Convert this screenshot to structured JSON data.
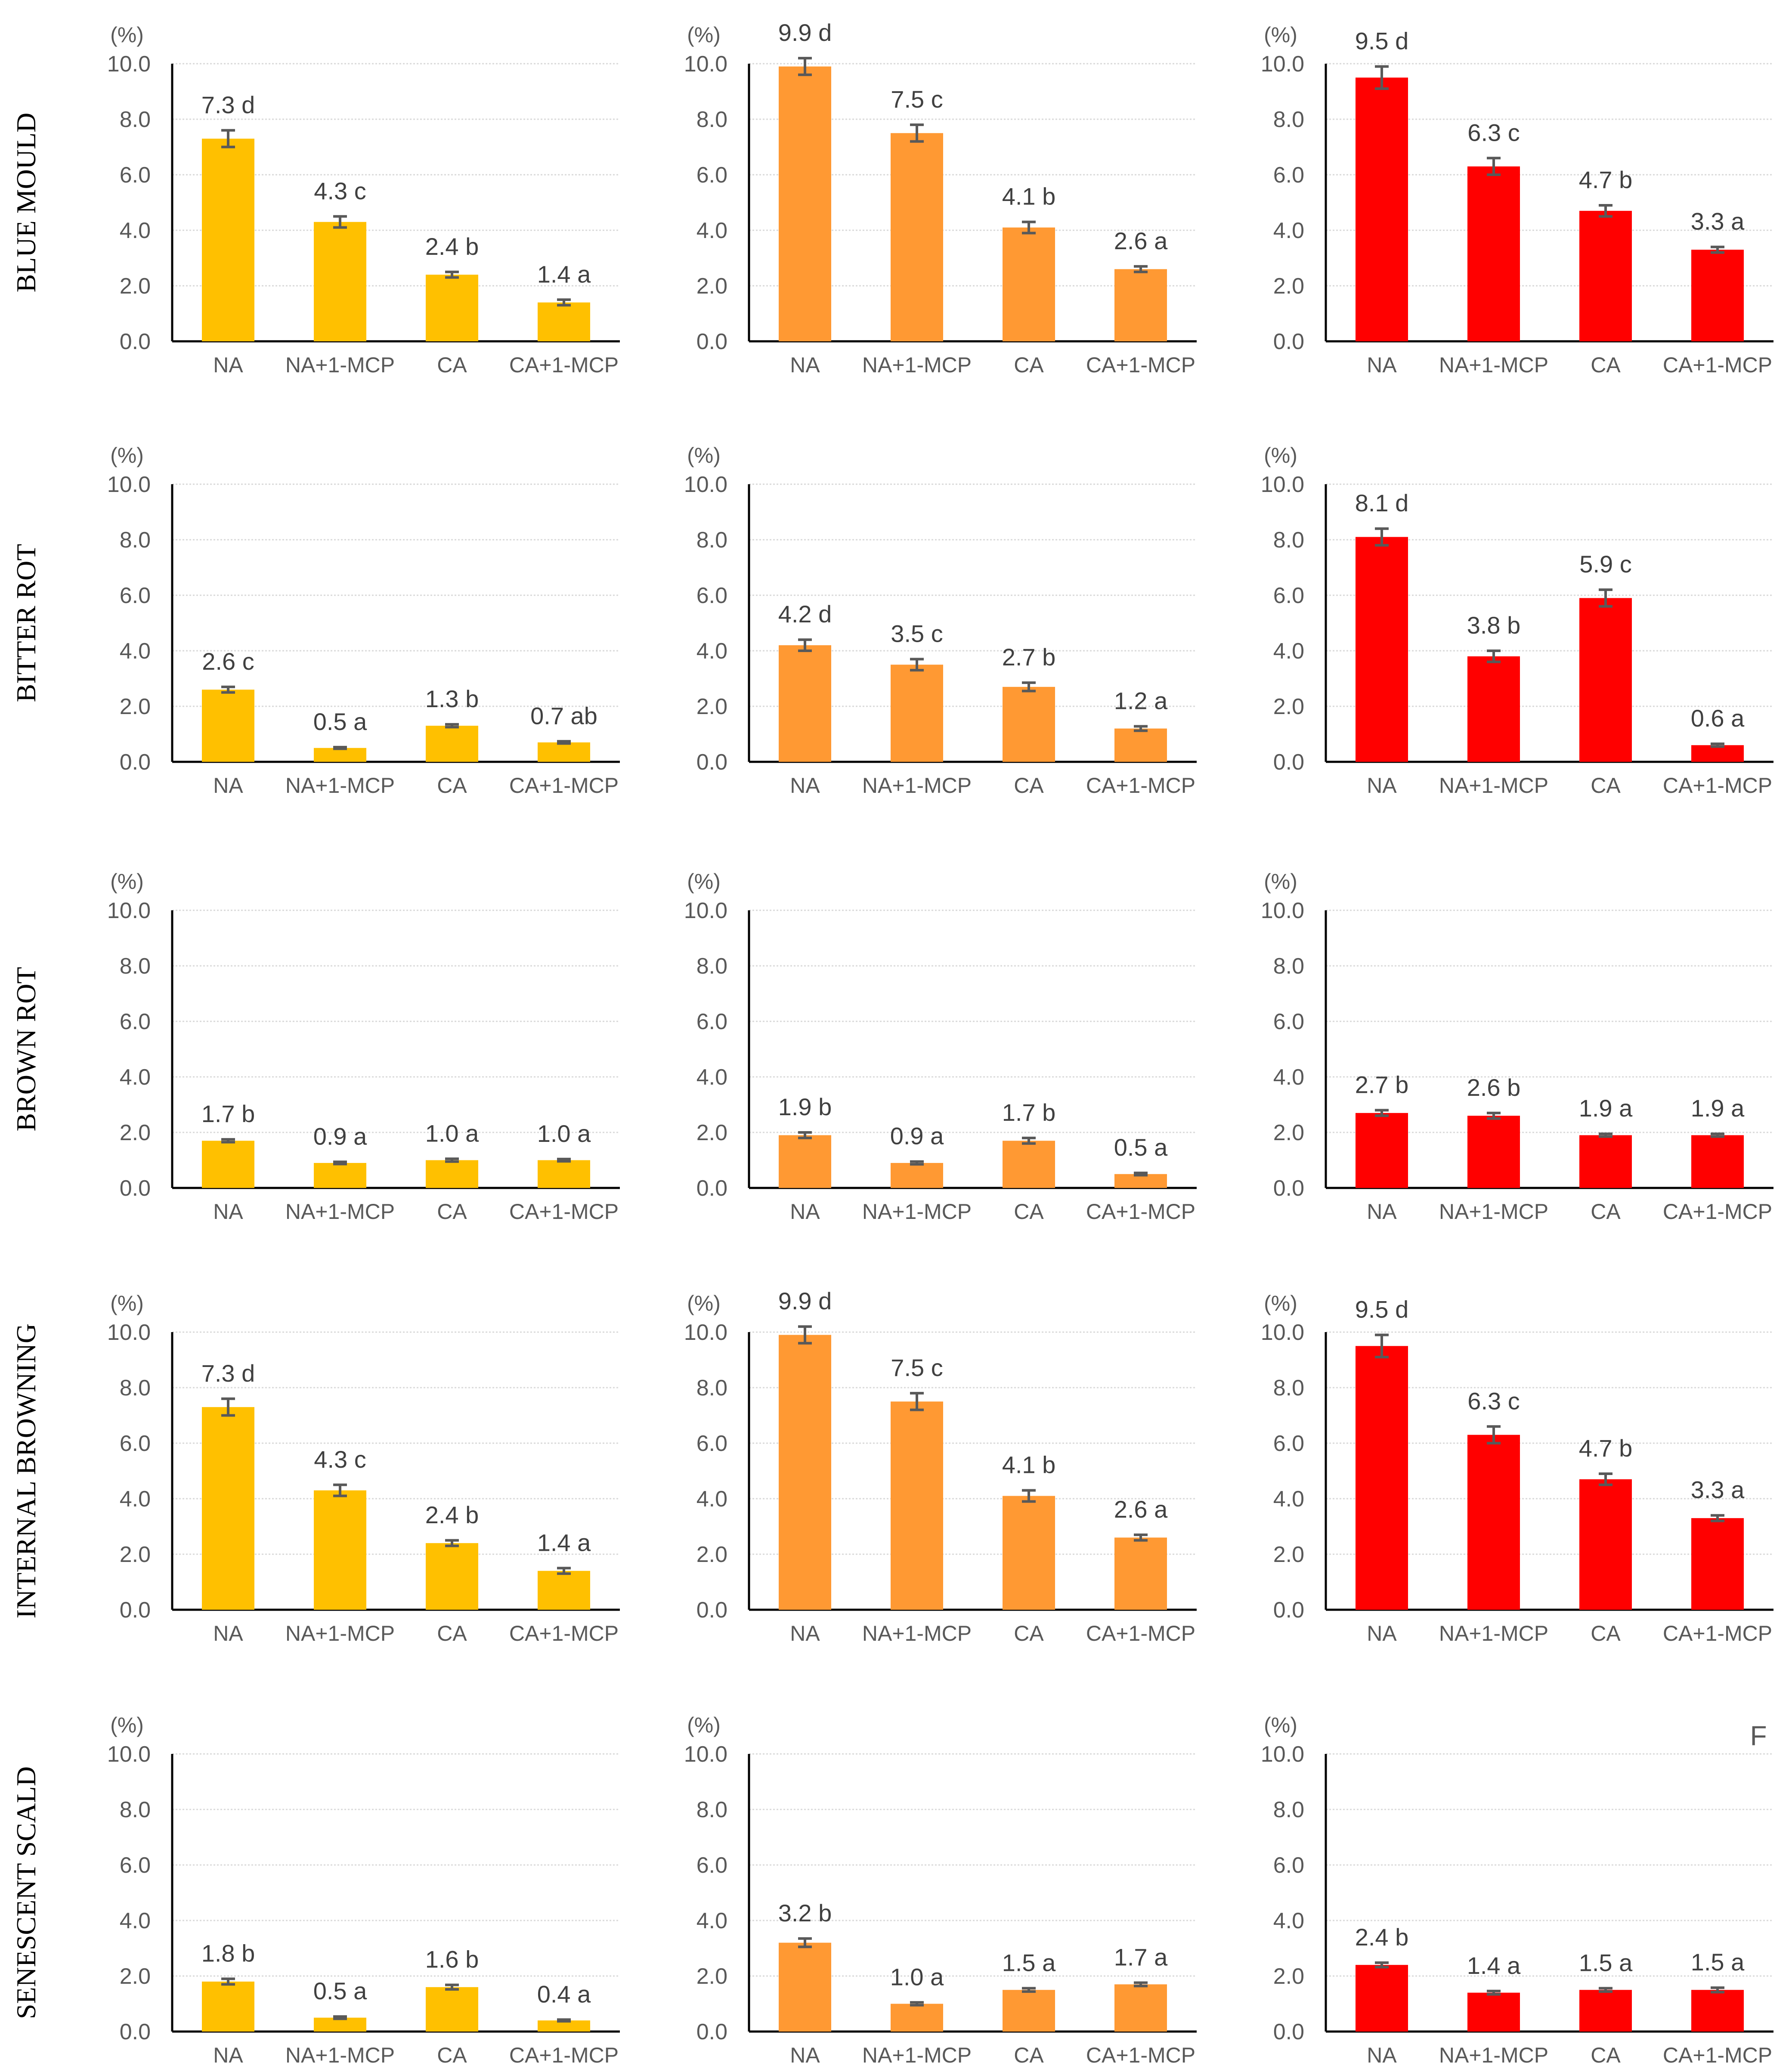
{
  "row_labels": [
    "BLUE MOULD",
    "BITTER ROT",
    "BROWN ROT",
    "INTERNAL BROWNING",
    "SENESCENT SCALD"
  ],
  "panel_letters": [
    "",
    "",
    "",
    "",
    "",
    "",
    "",
    "",
    "",
    "",
    "",
    "",
    "",
    "",
    "F"
  ],
  "colors": [
    "#FFC000",
    "#FF9933",
    "#FF0000"
  ],
  "error_bar_color": "#595959",
  "chart_data": [
    {
      "type": "bar",
      "ylabel": "(%)",
      "ylim": [
        0,
        10
      ],
      "yticks": [
        "0.0",
        "2.0",
        "4.0",
        "6.0",
        "8.0",
        "10.0"
      ],
      "categories": [
        "NA",
        "NA+1-MCP",
        "CA",
        "CA+1-MCP"
      ],
      "values": [
        7.3,
        4.3,
        2.4,
        1.4
      ],
      "errors": [
        0.3,
        0.2,
        0.1,
        0.1
      ],
      "labels": [
        "7.3  d",
        "4.3 c",
        "2.4 b",
        "1.4 a"
      ],
      "grid": true
    },
    {
      "type": "bar",
      "ylabel": "(%)",
      "ylim": [
        0,
        10
      ],
      "yticks": [
        "0.0",
        "2.0",
        "4.0",
        "6.0",
        "8.0",
        "10.0"
      ],
      "categories": [
        "NA",
        "NA+1-MCP",
        "CA",
        "CA+1-MCP"
      ],
      "values": [
        9.9,
        7.5,
        4.1,
        2.6
      ],
      "errors": [
        0.3,
        0.3,
        0.2,
        0.1
      ],
      "labels": [
        "9.9 d",
        "7.5 c",
        "4.1 b",
        "2.6 a"
      ],
      "grid": true
    },
    {
      "type": "bar",
      "ylabel": "(%)",
      "ylim": [
        0,
        10
      ],
      "yticks": [
        "0.0",
        "2.0",
        "4.0",
        "6.0",
        "8.0",
        "10.0"
      ],
      "categories": [
        "NA",
        "NA+1-MCP",
        "CA",
        "CA+1-MCP"
      ],
      "values": [
        9.5,
        6.3,
        4.7,
        3.3
      ],
      "errors": [
        0.4,
        0.3,
        0.2,
        0.1
      ],
      "labels": [
        "9.5 d",
        "6.3 c",
        "4.7 b",
        "3.3 a"
      ],
      "grid": true
    },
    {
      "type": "bar",
      "ylabel": "(%)",
      "ylim": [
        0,
        10
      ],
      "yticks": [
        "0.0",
        "2.0",
        "4.0",
        "6.0",
        "8.0",
        "10.0"
      ],
      "categories": [
        "NA",
        "NA+1-MCP",
        "CA",
        "CA+1-MCP"
      ],
      "values": [
        2.6,
        0.5,
        1.3,
        0.7
      ],
      "errors": [
        0.1,
        0.03,
        0.05,
        0.04
      ],
      "labels": [
        "2.6  c",
        "0.5 a",
        "1.3 b",
        "0.7 ab"
      ],
      "grid": true
    },
    {
      "type": "bar",
      "ylabel": "(%)",
      "ylim": [
        0,
        10
      ],
      "yticks": [
        "0.0",
        "2.0",
        "4.0",
        "6.0",
        "8.0",
        "10.0"
      ],
      "categories": [
        "NA",
        "NA+1-MCP",
        "CA",
        "CA+1-MCP"
      ],
      "values": [
        4.2,
        3.5,
        2.7,
        1.2
      ],
      "errors": [
        0.2,
        0.2,
        0.15,
        0.08
      ],
      "labels": [
        "4.2 d",
        "3.5 c",
        "2.7 b",
        "1.2 a"
      ],
      "grid": true
    },
    {
      "type": "bar",
      "ylabel": "(%)",
      "ylim": [
        0,
        10
      ],
      "yticks": [
        "0.0",
        "2.0",
        "4.0",
        "6.0",
        "8.0",
        "10.0"
      ],
      "categories": [
        "NA",
        "NA+1-MCP",
        "CA",
        "CA+1-MCP"
      ],
      "values": [
        8.1,
        3.8,
        5.9,
        0.6
      ],
      "errors": [
        0.3,
        0.2,
        0.3,
        0.05
      ],
      "labels": [
        "8.1 d",
        "3.8 b",
        "5.9 c",
        "0.6 a"
      ],
      "grid": true
    },
    {
      "type": "bar",
      "ylabel": "(%)",
      "ylim": [
        0,
        10
      ],
      "yticks": [
        "0.0",
        "2.0",
        "4.0",
        "6.0",
        "8.0",
        "10.0"
      ],
      "categories": [
        "NA",
        "NA+1-MCP",
        "CA",
        "CA+1-MCP"
      ],
      "values": [
        1.7,
        0.9,
        1.0,
        1.0
      ],
      "errors": [
        0.05,
        0.04,
        0.05,
        0.04
      ],
      "labels": [
        "1.7 b",
        "0.9 a",
        "1.0 a",
        "1.0 a"
      ],
      "grid": true
    },
    {
      "type": "bar",
      "ylabel": "(%)",
      "ylim": [
        0,
        10
      ],
      "yticks": [
        "0.0",
        "2.0",
        "4.0",
        "6.0",
        "8.0",
        "10.0"
      ],
      "categories": [
        "NA",
        "NA+1-MCP",
        "CA",
        "CA+1-MCP"
      ],
      "values": [
        1.9,
        0.9,
        1.7,
        0.5
      ],
      "errors": [
        0.1,
        0.05,
        0.1,
        0.04
      ],
      "labels": [
        "1.9 b",
        "0.9 a",
        "1.7 b",
        "0.5 a"
      ],
      "grid": true
    },
    {
      "type": "bar",
      "ylabel": "(%)",
      "ylim": [
        0,
        10
      ],
      "yticks": [
        "0.0",
        "2.0",
        "4.0",
        "6.0",
        "8.0",
        "10.0"
      ],
      "categories": [
        "NA",
        "NA+1-MCP",
        "CA",
        "CA+1-MCP"
      ],
      "values": [
        2.7,
        2.6,
        1.9,
        1.9
      ],
      "errors": [
        0.1,
        0.1,
        0.05,
        0.05
      ],
      "labels": [
        "2.7 b",
        "2.6 b",
        "1.9 a",
        "1.9 a"
      ],
      "grid": true
    },
    {
      "type": "bar",
      "ylabel": "(%)",
      "ylim": [
        0,
        10
      ],
      "yticks": [
        "0.0",
        "2.0",
        "4.0",
        "6.0",
        "8.0",
        "10.0"
      ],
      "categories": [
        "NA",
        "NA+1-MCP",
        "CA",
        "CA+1-MCP"
      ],
      "values": [
        7.3,
        4.3,
        2.4,
        1.4
      ],
      "errors": [
        0.3,
        0.2,
        0.1,
        0.1
      ],
      "labels": [
        "7.3  d",
        "4.3 c",
        "2.4 b",
        "1.4 a"
      ],
      "grid": true
    },
    {
      "type": "bar",
      "ylabel": "(%)",
      "ylim": [
        0,
        10
      ],
      "yticks": [
        "0.0",
        "2.0",
        "4.0",
        "6.0",
        "8.0",
        "10.0"
      ],
      "categories": [
        "NA",
        "NA+1-MCP",
        "CA",
        "CA+1-MCP"
      ],
      "values": [
        9.9,
        7.5,
        4.1,
        2.6
      ],
      "errors": [
        0.3,
        0.3,
        0.2,
        0.1
      ],
      "labels": [
        "9.9 d",
        "7.5 c",
        "4.1 b",
        "2.6 a"
      ],
      "grid": true
    },
    {
      "type": "bar",
      "ylabel": "(%)",
      "ylim": [
        0,
        10
      ],
      "yticks": [
        "0.0",
        "2.0",
        "4.0",
        "6.0",
        "8.0",
        "10.0"
      ],
      "categories": [
        "NA",
        "NA+1-MCP",
        "CA",
        "CA+1-MCP"
      ],
      "values": [
        9.5,
        6.3,
        4.7,
        3.3
      ],
      "errors": [
        0.4,
        0.3,
        0.2,
        0.1
      ],
      "labels": [
        "9.5 d",
        "6.3 c",
        "4.7 b",
        "3.3 a"
      ],
      "grid": true
    },
    {
      "type": "bar",
      "ylabel": "(%)",
      "ylim": [
        0,
        10
      ],
      "yticks": [
        "0.0",
        "2.0",
        "4.0",
        "6.0",
        "8.0",
        "10.0"
      ],
      "categories": [
        "NA",
        "NA+1-MCP",
        "CA",
        "CA+1-MCP"
      ],
      "values": [
        1.8,
        0.5,
        1.6,
        0.4
      ],
      "errors": [
        0.1,
        0.04,
        0.08,
        0.03
      ],
      "labels": [
        "1.8 b",
        "0.5 a",
        "1.6 b",
        "0.4 a"
      ],
      "grid": true
    },
    {
      "type": "bar",
      "ylabel": "(%)",
      "ylim": [
        0,
        10
      ],
      "yticks": [
        "0.0",
        "2.0",
        "4.0",
        "6.0",
        "8.0",
        "10.0"
      ],
      "categories": [
        "NA",
        "NA+1-MCP",
        "CA",
        "CA+1-MCP"
      ],
      "values": [
        3.2,
        1.0,
        1.5,
        1.7
      ],
      "errors": [
        0.15,
        0.05,
        0.06,
        0.06
      ],
      "labels": [
        "3.2 b",
        "1.0 a",
        "1.5 a",
        "1.7 a"
      ],
      "grid": true
    },
    {
      "type": "bar",
      "ylabel": "(%)",
      "ylim": [
        0,
        10
      ],
      "yticks": [
        "0.0",
        "2.0",
        "4.0",
        "6.0",
        "8.0",
        "10.0"
      ],
      "categories": [
        "NA",
        "NA+1-MCP",
        "CA",
        "CA+1-MCP"
      ],
      "values": [
        2.4,
        1.4,
        1.5,
        1.5
      ],
      "errors": [
        0.08,
        0.06,
        0.06,
        0.08
      ],
      "labels": [
        "2.4 b",
        "1.4 a",
        "1.5 a",
        "1.5 a"
      ],
      "grid": true
    }
  ]
}
